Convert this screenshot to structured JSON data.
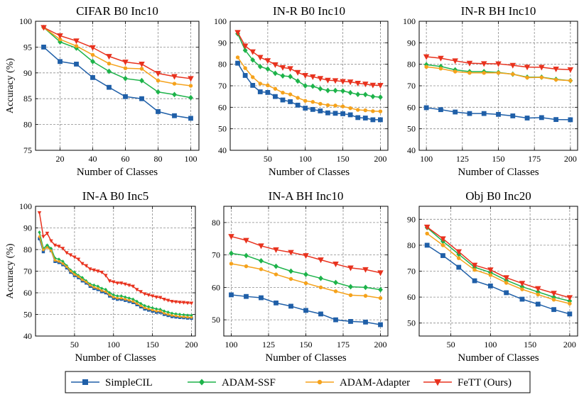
{
  "legend": [
    {
      "name": "SimpleCIL",
      "color": "#1f5fa8",
      "marker": "square"
    },
    {
      "name": "ADAM-SSF",
      "color": "#1db34a",
      "marker": "diamond"
    },
    {
      "name": "ADAM-Adapter",
      "color": "#f5a21b",
      "marker": "circle"
    },
    {
      "name": "FeTT (Ours)",
      "color": "#e8321e",
      "marker": "triangle"
    }
  ],
  "chart_data": [
    {
      "type": "line",
      "title": "CIFAR B0 Inc10",
      "xlabel": "Number of Classes",
      "ylabel": "Accuracy (%)",
      "xlim": [
        5,
        105
      ],
      "ylim": [
        75,
        100
      ],
      "xticks": [
        20,
        40,
        60,
        80,
        100
      ],
      "yticks": [
        75,
        80,
        85,
        90,
        95,
        100
      ],
      "x": [
        10,
        20,
        30,
        40,
        50,
        60,
        70,
        80,
        90,
        100
      ],
      "series": [
        {
          "name": "SimpleCIL",
          "values": [
            95.0,
            92.2,
            91.7,
            89.1,
            87.2,
            85.4,
            85.0,
            82.5,
            81.7,
            81.2
          ]
        },
        {
          "name": "ADAM-SSF",
          "values": [
            98.8,
            96.0,
            94.8,
            92.2,
            90.3,
            88.9,
            88.5,
            86.3,
            85.8,
            85.2
          ]
        },
        {
          "name": "ADAM-Adapter",
          "values": [
            98.8,
            96.5,
            95.2,
            93.5,
            91.8,
            90.9,
            90.8,
            88.5,
            87.9,
            87.5
          ]
        },
        {
          "name": "FeTT (Ours)",
          "values": [
            98.8,
            97.2,
            96.2,
            94.9,
            93.2,
            92.1,
            91.7,
            89.9,
            89.3,
            88.9
          ]
        }
      ]
    },
    {
      "type": "line",
      "title": "IN-R B0 Inc10",
      "xlabel": "Number of Classes",
      "ylabel": "",
      "xlim": [
        0,
        210
      ],
      "ylim": [
        40,
        100
      ],
      "xticks": [
        50,
        100,
        150,
        200
      ],
      "yticks": [
        40,
        50,
        60,
        70,
        80,
        90,
        100
      ],
      "x": [
        10,
        20,
        30,
        40,
        50,
        60,
        70,
        80,
        90,
        100,
        110,
        120,
        130,
        140,
        150,
        160,
        170,
        180,
        190,
        200
      ],
      "series": [
        {
          "name": "SimpleCIL",
          "values": [
            80.5,
            74.8,
            70.2,
            67.2,
            66.9,
            65.0,
            63.4,
            62.6,
            61.0,
            59.6,
            59.0,
            58.3,
            57.4,
            57.2,
            57.0,
            56.5,
            55.2,
            55.0,
            54.2,
            54.2
          ]
        },
        {
          "name": "ADAM-SSF",
          "values": [
            94.2,
            86.5,
            82.0,
            78.9,
            77.8,
            75.8,
            74.6,
            74.3,
            72.2,
            70.0,
            69.8,
            68.6,
            67.8,
            67.8,
            67.6,
            66.8,
            66.0,
            65.9,
            65.0,
            64.7
          ]
        },
        {
          "name": "ADAM-Adapter",
          "values": [
            83.2,
            78.2,
            74.0,
            71.0,
            70.2,
            68.6,
            66.8,
            66.0,
            64.4,
            63.0,
            62.5,
            61.6,
            61.0,
            60.8,
            60.4,
            59.6,
            58.8,
            58.6,
            58.2,
            58.1
          ]
        },
        {
          "name": "FeTT (Ours)",
          "values": [
            94.8,
            88.5,
            85.8,
            83.2,
            81.7,
            79.8,
            78.5,
            78.0,
            76.2,
            74.8,
            74.2,
            73.4,
            72.6,
            72.4,
            72.0,
            71.8,
            71.2,
            70.8,
            70.3,
            70.2
          ]
        }
      ]
    },
    {
      "type": "line",
      "title": "IN-R BH Inc10",
      "xlabel": "Number of Classes",
      "ylabel": "",
      "xlim": [
        95,
        205
      ],
      "ylim": [
        40,
        100
      ],
      "xticks": [
        100,
        125,
        150,
        175,
        200
      ],
      "yticks": [
        40,
        50,
        60,
        70,
        80,
        90,
        100
      ],
      "x": [
        100,
        110,
        120,
        130,
        140,
        150,
        160,
        170,
        180,
        190,
        200
      ],
      "series": [
        {
          "name": "SimpleCIL",
          "values": [
            59.8,
            58.9,
            57.8,
            57.1,
            57.1,
            56.7,
            56.0,
            55.0,
            55.2,
            54.3,
            54.2
          ]
        },
        {
          "name": "ADAM-SSF",
          "values": [
            79.8,
            79.0,
            77.4,
            76.6,
            76.6,
            76.2,
            75.4,
            74.0,
            74.0,
            73.0,
            72.4
          ]
        },
        {
          "name": "ADAM-Adapter",
          "values": [
            78.8,
            78.0,
            76.6,
            76.0,
            76.0,
            76.0,
            75.4,
            73.8,
            73.9,
            72.8,
            72.4
          ]
        },
        {
          "name": "FeTT (Ours)",
          "values": [
            83.5,
            82.8,
            81.6,
            80.5,
            80.3,
            80.2,
            79.5,
            78.7,
            78.6,
            77.8,
            77.5
          ]
        }
      ]
    },
    {
      "type": "line",
      "title": "IN-A B0 Inc5",
      "xlabel": "Number of Classes",
      "ylabel": "Accuracy (%)",
      "xlim": [
        0,
        205
      ],
      "ylim": [
        40,
        100
      ],
      "xticks": [
        50,
        100,
        150,
        200
      ],
      "yticks": [
        40,
        50,
        60,
        70,
        80,
        90,
        100
      ],
      "x": [
        5,
        10,
        15,
        20,
        25,
        30,
        35,
        40,
        45,
        50,
        55,
        60,
        65,
        70,
        75,
        80,
        85,
        90,
        95,
        100,
        105,
        110,
        115,
        120,
        125,
        130,
        135,
        140,
        145,
        150,
        155,
        160,
        165,
        170,
        175,
        180,
        185,
        190,
        195,
        200
      ],
      "series": [
        {
          "name": "SimpleCIL",
          "values": [
            85.0,
            79.0,
            81.5,
            79.5,
            74.5,
            74.0,
            73.0,
            71.5,
            69.5,
            68.0,
            67.0,
            65.5,
            64.5,
            63.0,
            62.0,
            61.5,
            60.5,
            60.0,
            58.5,
            57.5,
            57.0,
            57.0,
            56.5,
            56.0,
            55.5,
            54.5,
            53.5,
            52.5,
            52.0,
            51.5,
            51.0,
            51.0,
            50.0,
            49.5,
            49.0,
            48.8,
            48.6,
            48.5,
            48.3,
            48.2
          ]
        },
        {
          "name": "ADAM-SSF",
          "values": [
            88.0,
            80.5,
            82.0,
            80.5,
            76.0,
            75.5,
            74.5,
            72.5,
            70.5,
            69.5,
            68.0,
            67.0,
            65.5,
            64.0,
            63.5,
            63.0,
            62.0,
            61.5,
            60.0,
            59.0,
            58.5,
            58.5,
            58.0,
            57.5,
            57.0,
            56.0,
            55.0,
            54.0,
            53.5,
            53.0,
            52.5,
            52.3,
            51.5,
            51.0,
            50.5,
            50.2,
            50.0,
            49.8,
            49.6,
            49.5
          ]
        },
        {
          "name": "ADAM-Adapter",
          "values": [
            86.0,
            79.8,
            81.0,
            79.5,
            75.0,
            74.5,
            73.5,
            72.0,
            70.0,
            68.5,
            67.5,
            66.0,
            65.0,
            63.5,
            62.5,
            62.0,
            61.0,
            60.5,
            59.0,
            58.0,
            57.5,
            57.5,
            57.0,
            56.5,
            56.0,
            55.0,
            54.0,
            53.0,
            52.5,
            52.0,
            51.5,
            51.5,
            50.5,
            50.0,
            49.5,
            49.3,
            49.0,
            48.9,
            48.7,
            48.6
          ]
        },
        {
          "name": "FeTT (Ours)",
          "values": [
            97.0,
            86.0,
            87.5,
            84.0,
            82.0,
            81.5,
            80.5,
            78.5,
            77.5,
            76.5,
            75.5,
            73.5,
            72.5,
            71.0,
            70.5,
            70.0,
            69.5,
            68.0,
            65.5,
            65.0,
            64.5,
            64.5,
            64.0,
            63.5,
            63.0,
            61.5,
            60.5,
            59.5,
            59.0,
            58.5,
            58.0,
            57.8,
            57.0,
            56.5,
            56.0,
            55.8,
            55.6,
            55.5,
            55.3,
            55.2
          ]
        }
      ]
    },
    {
      "type": "line",
      "title": "IN-A BH Inc10",
      "xlabel": "Number of Classes",
      "ylabel": "",
      "xlim": [
        95,
        205
      ],
      "ylim": [
        45,
        85
      ],
      "xticks": [
        100,
        125,
        150,
        175,
        200
      ],
      "yticks": [
        50,
        60,
        70,
        80
      ],
      "x": [
        100,
        110,
        120,
        130,
        140,
        150,
        160,
        170,
        180,
        190,
        200
      ],
      "series": [
        {
          "name": "SimpleCIL",
          "values": [
            57.7,
            57.2,
            56.8,
            55.2,
            54.2,
            52.9,
            51.8,
            50.0,
            49.5,
            49.3,
            48.5
          ]
        },
        {
          "name": "ADAM-SSF",
          "values": [
            70.5,
            69.8,
            68.2,
            66.5,
            65.0,
            64.0,
            62.8,
            61.5,
            60.2,
            60.0,
            59.3
          ]
        },
        {
          "name": "ADAM-Adapter",
          "values": [
            67.3,
            66.5,
            65.6,
            64.0,
            62.6,
            61.3,
            60.0,
            58.8,
            57.6,
            57.4,
            56.7
          ]
        },
        {
          "name": "FeTT (Ours)",
          "values": [
            75.7,
            74.5,
            72.8,
            71.6,
            70.8,
            69.8,
            68.5,
            67.2,
            66.0,
            65.5,
            64.5
          ]
        }
      ]
    },
    {
      "type": "line",
      "title": "Obj B0 Inc20",
      "xlabel": "Number of Classes",
      "ylabel": "",
      "xlim": [
        10,
        210
      ],
      "ylim": [
        45,
        95
      ],
      "xticks": [
        50,
        100,
        150,
        200
      ],
      "yticks": [
        50,
        60,
        70,
        80,
        90
      ],
      "x": [
        20,
        40,
        60,
        80,
        100,
        120,
        140,
        160,
        180,
        200
      ],
      "series": [
        {
          "name": "SimpleCIL",
          "values": [
            80.0,
            76.0,
            71.5,
            66.3,
            64.3,
            61.7,
            59.2,
            57.3,
            55.2,
            53.5
          ]
        },
        {
          "name": "ADAM-SSF",
          "values": [
            86.8,
            81.5,
            76.5,
            71.5,
            69.5,
            66.5,
            64.0,
            62.0,
            60.0,
            58.5
          ]
        },
        {
          "name": "ADAM-Adapter",
          "values": [
            84.5,
            80.0,
            75.0,
            70.5,
            68.5,
            65.5,
            63.0,
            61.0,
            59.0,
            57.5
          ]
        },
        {
          "name": "FeTT (Ours)",
          "values": [
            87.0,
            82.5,
            77.5,
            72.3,
            70.5,
            67.5,
            65.3,
            63.3,
            61.5,
            59.8
          ]
        }
      ]
    }
  ]
}
